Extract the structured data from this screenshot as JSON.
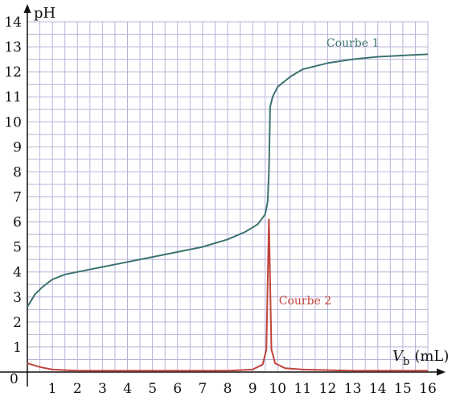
{
  "chart_data": {
    "type": "line",
    "ylabel": "pH",
    "xlabel_main": "V",
    "xlabel_sub": "b",
    "xlabel_unit": "(mL)",
    "xlim": [
      0,
      16
    ],
    "ylim": [
      0,
      14
    ],
    "x_ticks": [
      0,
      1,
      2,
      3,
      4,
      5,
      6,
      7,
      8,
      9,
      10,
      11,
      12,
      13,
      14,
      15,
      16
    ],
    "y_ticks": [
      1,
      2,
      3,
      4,
      5,
      6,
      7,
      8,
      9,
      10,
      11,
      12,
      13,
      14
    ],
    "origin_label": "0",
    "grid": true,
    "series": [
      {
        "name": "Courbe 1",
        "color": "#3d7370",
        "label_at": [
          13,
          13.0
        ],
        "points": [
          [
            0,
            2.6
          ],
          [
            0.3,
            3.1
          ],
          [
            0.6,
            3.4
          ],
          [
            1.0,
            3.7
          ],
          [
            1.5,
            3.9
          ],
          [
            2.0,
            4.0
          ],
          [
            3.0,
            4.2
          ],
          [
            4.0,
            4.4
          ],
          [
            5.0,
            4.6
          ],
          [
            6.0,
            4.8
          ],
          [
            7.0,
            5.0
          ],
          [
            8.0,
            5.3
          ],
          [
            8.7,
            5.6
          ],
          [
            9.2,
            5.9
          ],
          [
            9.5,
            6.3
          ],
          [
            9.6,
            6.8
          ],
          [
            9.65,
            8.0
          ],
          [
            9.7,
            10.6
          ],
          [
            9.8,
            11.0
          ],
          [
            10.0,
            11.4
          ],
          [
            10.5,
            11.8
          ],
          [
            11.0,
            12.1
          ],
          [
            12.0,
            12.35
          ],
          [
            13.0,
            12.5
          ],
          [
            14.0,
            12.6
          ],
          [
            15.0,
            12.65
          ],
          [
            16.0,
            12.7
          ]
        ]
      },
      {
        "name": "Courbe 2",
        "color": "#c0443c",
        "label_at": [
          11.1,
          2.7
        ],
        "points": [
          [
            0,
            0.35
          ],
          [
            0.5,
            0.2
          ],
          [
            1.0,
            0.1
          ],
          [
            2.0,
            0.05
          ],
          [
            5.0,
            0.05
          ],
          [
            8.0,
            0.05
          ],
          [
            9.0,
            0.1
          ],
          [
            9.4,
            0.3
          ],
          [
            9.55,
            0.9
          ],
          [
            9.65,
            6.1
          ],
          [
            9.75,
            0.9
          ],
          [
            9.9,
            0.35
          ],
          [
            10.3,
            0.15
          ],
          [
            11.0,
            0.1
          ],
          [
            13.0,
            0.05
          ],
          [
            16.0,
            0.05
          ]
        ]
      }
    ]
  }
}
